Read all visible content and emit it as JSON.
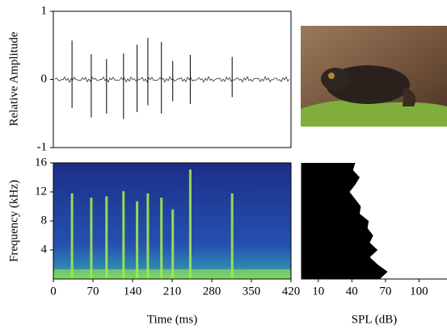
{
  "chart_data": [
    {
      "type": "waveform",
      "ylabel": "Relative Amplitude",
      "xlim": [
        0,
        420
      ],
      "ylim": [
        -1,
        1
      ],
      "yticks": [
        -1,
        0,
        1
      ],
      "color": "#000000",
      "x": [
        33,
        67,
        94,
        124,
        148,
        167,
        191,
        211,
        242,
        316
      ],
      "max": [
        0.57,
        0.37,
        0.3,
        0.38,
        0.51,
        0.61,
        0.55,
        0.27,
        0.36,
        0.33
      ],
      "min": [
        -0.42,
        -0.56,
        -0.5,
        -0.58,
        -0.48,
        -0.38,
        -0.5,
        -0.32,
        -0.36,
        -0.26
      ]
    },
    {
      "type": "spectrogram",
      "xlabel": "Time (ms)",
      "ylabel": "Frequency (kHz)",
      "xlim": [
        0,
        420
      ],
      "xticks": [
        0,
        70,
        140,
        210,
        280,
        350,
        420
      ],
      "ylim": [
        0,
        16
      ],
      "yticks": [
        4,
        8,
        12,
        16
      ],
      "color": "#a6e84a",
      "x": [
        33,
        67,
        94,
        124,
        148,
        167,
        191,
        211,
        242,
        316
      ],
      "values": [
        11.8,
        11.2,
        11.4,
        12.1,
        10.7,
        11.8,
        11.2,
        9.6,
        15.1,
        11.8
      ]
    },
    {
      "type": "area",
      "xlabel": "SPL (dB)",
      "xlim": [
        -5,
        125
      ],
      "xticks": [
        10,
        40,
        70,
        100
      ],
      "ylim": [
        0,
        16
      ],
      "color": "#000000",
      "y": [
        0,
        1,
        2,
        3,
        4,
        5,
        6,
        7,
        8,
        9,
        10,
        11,
        12,
        13,
        14,
        15,
        16
      ],
      "values": [
        65,
        72,
        63,
        56,
        63,
        56,
        59,
        54,
        55,
        47,
        48,
        43,
        38,
        43,
        47,
        41,
        43
      ]
    }
  ]
}
